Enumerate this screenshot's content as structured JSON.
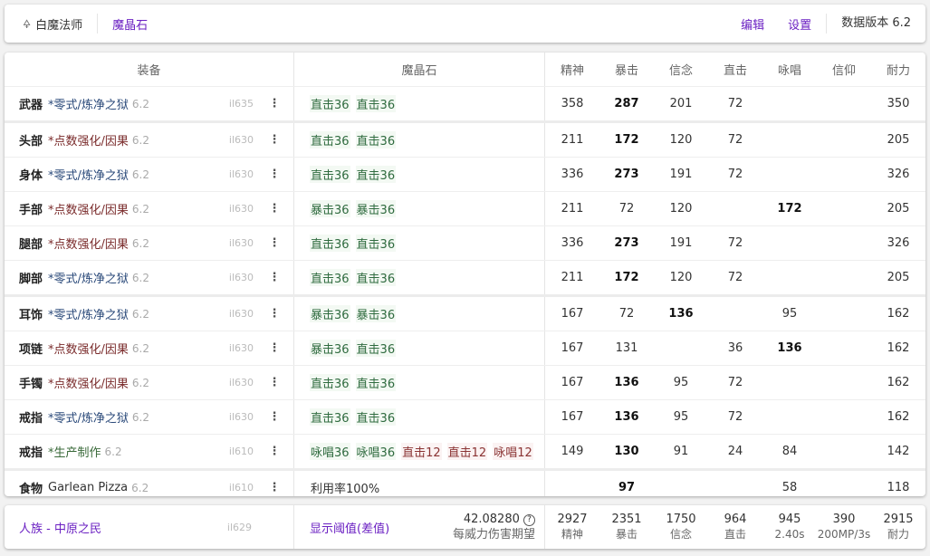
{
  "topbar": {
    "job": "白魔法师",
    "tab": "魔晶石",
    "edit": "编辑",
    "settings": "设置",
    "version": "数据版本 6.2"
  },
  "colors": {
    "accent": "#6a1fc2",
    "savage": "#2b4a7a",
    "tome": "#7a2b2b",
    "crafted": "#3a6a3a"
  },
  "columns": {
    "equipment": "装备",
    "materia": "魔晶石",
    "stats": [
      "精神",
      "暴击",
      "信念",
      "直击",
      "咏唱",
      "信仰",
      "耐力"
    ]
  },
  "rows": [
    {
      "slot": "武器",
      "name": "*零式/炼净之狱",
      "kind": "savage",
      "ver": "6.2",
      "ilvl": "il635",
      "materia": [
        {
          "t": "直击36",
          "tier": "t36"
        },
        {
          "t": "直击36",
          "tier": "t36"
        }
      ],
      "stats": [
        "358",
        "287",
        "201",
        "72",
        "",
        "",
        "350"
      ],
      "bold": 1,
      "sep": true
    },
    {
      "slot": "头部",
      "name": "*点数强化/因果",
      "kind": "tome",
      "ver": "6.2",
      "ilvl": "il630",
      "materia": [
        {
          "t": "直击36",
          "tier": "t36"
        },
        {
          "t": "直击36",
          "tier": "t36"
        }
      ],
      "stats": [
        "211",
        "172",
        "120",
        "72",
        "",
        "",
        "205"
      ],
      "bold": 1
    },
    {
      "slot": "身体",
      "name": "*零式/炼净之狱",
      "kind": "savage",
      "ver": "6.2",
      "ilvl": "il630",
      "materia": [
        {
          "t": "直击36",
          "tier": "t36"
        },
        {
          "t": "直击36",
          "tier": "t36"
        }
      ],
      "stats": [
        "336",
        "273",
        "191",
        "72",
        "",
        "",
        "326"
      ],
      "bold": 1
    },
    {
      "slot": "手部",
      "name": "*点数强化/因果",
      "kind": "tome",
      "ver": "6.2",
      "ilvl": "il630",
      "materia": [
        {
          "t": "暴击36",
          "tier": "t36"
        },
        {
          "t": "暴击36",
          "tier": "t36"
        }
      ],
      "stats": [
        "211",
        "72",
        "120",
        "",
        "172",
        "",
        "205"
      ],
      "bold": 4
    },
    {
      "slot": "腿部",
      "name": "*点数强化/因果",
      "kind": "tome",
      "ver": "6.2",
      "ilvl": "il630",
      "materia": [
        {
          "t": "直击36",
          "tier": "t36"
        },
        {
          "t": "直击36",
          "tier": "t36"
        }
      ],
      "stats": [
        "336",
        "273",
        "191",
        "72",
        "",
        "",
        "326"
      ],
      "bold": 1
    },
    {
      "slot": "脚部",
      "name": "*零式/炼净之狱",
      "kind": "savage",
      "ver": "6.2",
      "ilvl": "il630",
      "materia": [
        {
          "t": "直击36",
          "tier": "t36"
        },
        {
          "t": "直击36",
          "tier": "t36"
        }
      ],
      "stats": [
        "211",
        "172",
        "120",
        "72",
        "",
        "",
        "205"
      ],
      "bold": 1,
      "sep": true
    },
    {
      "slot": "耳饰",
      "name": "*零式/炼净之狱",
      "kind": "savage",
      "ver": "6.2",
      "ilvl": "il630",
      "materia": [
        {
          "t": "暴击36",
          "tier": "t36"
        },
        {
          "t": "暴击36",
          "tier": "t36"
        }
      ],
      "stats": [
        "167",
        "72",
        "136",
        "",
        "95",
        "",
        "162"
      ],
      "bold": 2
    },
    {
      "slot": "项链",
      "name": "*点数强化/因果",
      "kind": "tome",
      "ver": "6.2",
      "ilvl": "il630",
      "materia": [
        {
          "t": "暴击36",
          "tier": "t36"
        },
        {
          "t": "直击36",
          "tier": "t36"
        }
      ],
      "stats": [
        "167",
        "131",
        "",
        "36",
        "136",
        "",
        "162"
      ],
      "bold": 4
    },
    {
      "slot": "手镯",
      "name": "*点数强化/因果",
      "kind": "tome",
      "ver": "6.2",
      "ilvl": "il630",
      "materia": [
        {
          "t": "直击36",
          "tier": "t36"
        },
        {
          "t": "直击36",
          "tier": "t36"
        }
      ],
      "stats": [
        "167",
        "136",
        "95",
        "72",
        "",
        "",
        "162"
      ],
      "bold": 1
    },
    {
      "slot": "戒指",
      "name": "*零式/炼净之狱",
      "kind": "savage",
      "ver": "6.2",
      "ilvl": "il630",
      "materia": [
        {
          "t": "直击36",
          "tier": "t36"
        },
        {
          "t": "直击36",
          "tier": "t36"
        }
      ],
      "stats": [
        "167",
        "136",
        "95",
        "72",
        "",
        "",
        "162"
      ],
      "bold": 1
    },
    {
      "slot": "戒指",
      "name": "*生产制作",
      "kind": "crafted",
      "ver": "6.2",
      "ilvl": "il610",
      "materia": [
        {
          "t": "咏唱36",
          "tier": "t36"
        },
        {
          "t": "咏唱36",
          "tier": "t36"
        },
        {
          "t": "直击12",
          "tier": "t12"
        },
        {
          "t": "直击12",
          "tier": "t12"
        },
        {
          "t": "咏唱12",
          "tier": "t12"
        }
      ],
      "stats": [
        "149",
        "130",
        "91",
        "24",
        "84",
        "",
        "142"
      ],
      "bold": 1,
      "sep": true
    },
    {
      "slot": "食物",
      "name": "Garlean Pizza",
      "kind": "food",
      "ver": "6.2",
      "ilvl": "il610",
      "materia": [
        {
          "t": "利用率100%",
          "tier": "plain"
        }
      ],
      "stats": [
        "",
        "97",
        "",
        "",
        "58",
        "",
        "118"
      ],
      "bold": 1
    }
  ],
  "summary": {
    "race": "人族 - 中原之民",
    "ilvl": "il629",
    "threshold": "显示阈值(差值)",
    "damage": "42.08280",
    "damage_label": "每威力伤害期望",
    "totals": [
      {
        "v": "2927",
        "l": "精神"
      },
      {
        "v": "2351",
        "l": "暴击"
      },
      {
        "v": "1750",
        "l": "信念"
      },
      {
        "v": "964",
        "l": "直击"
      },
      {
        "v": "945",
        "l": "2.40s"
      },
      {
        "v": "390",
        "l": "200MP/3s"
      },
      {
        "v": "2915",
        "l": "耐力"
      }
    ]
  }
}
